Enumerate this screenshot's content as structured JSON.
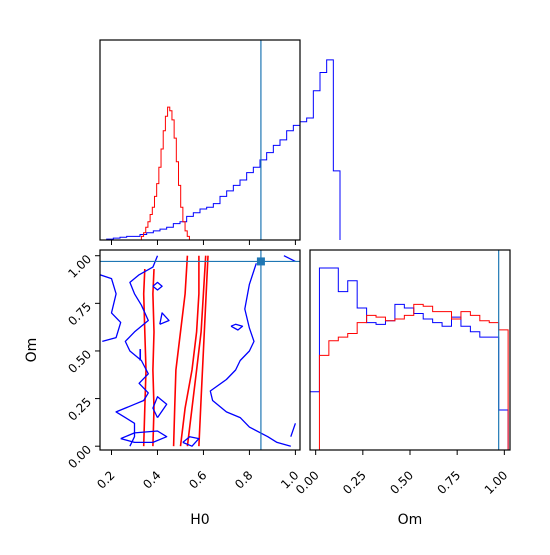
{
  "chart_data": {
    "type": "corner",
    "parameters": [
      "H0",
      "Om"
    ],
    "truths": {
      "H0": 0.85,
      "Om": 0.97
    },
    "colors": {
      "blue": "#0000ff",
      "red": "#ff0000",
      "truth": "#1f77b4"
    },
    "panels": [
      {
        "id": "hist-H0",
        "type": "histogram",
        "xlabel": "",
        "ylabel": "",
        "xlim": [
          0.15,
          1.02
        ],
        "series": [
          {
            "color": "blue",
            "bin_start": 0.15,
            "bin_width": 0.029,
            "values": [
              0,
              0.005,
              0.01,
              0.015,
              0.02,
              0.02,
              0.03,
              0.04,
              0.05,
              0.06,
              0.07,
              0.09,
              0.1,
              0.13,
              0.15,
              0.17,
              0.18,
              0.2,
              0.24,
              0.27,
              0.3,
              0.33,
              0.37,
              0.4,
              0.44,
              0.48,
              0.52,
              0.55,
              0.6,
              0.63,
              0.65,
              0.67,
              0.82,
              0.92,
              0.99,
              0.38
            ]
          },
          {
            "color": "red",
            "bin_start": 0.33,
            "bin_width": 0.0095,
            "values": [
              0.02,
              0.04,
              0.07,
              0.1,
              0.14,
              0.18,
              0.24,
              0.31,
              0.4,
              0.5,
              0.6,
              0.68,
              0.73,
              0.71,
              0.66,
              0.56,
              0.43,
              0.3,
              0.18,
              0.1,
              0.05,
              0.02
            ]
          }
        ]
      },
      {
        "id": "contour-H0-Om",
        "type": "contour",
        "xlabel": "H0",
        "ylabel": "Om",
        "xlim": [
          0.15,
          1.02
        ],
        "ylim": [
          -0.02,
          1.03
        ],
        "xticks": [
          "0.2",
          "0.4",
          "0.6",
          "0.8",
          "1.0"
        ],
        "yticks": [
          "0.00",
          "0.25",
          "0.50",
          "0.75",
          "1.00"
        ],
        "series": [
          {
            "color": "red",
            "lines": [
              [
                [
                  0.34,
                  0.0
                ],
                [
                  0.345,
                  0.2
                ],
                [
                  0.35,
                  0.4
                ],
                [
                  0.345,
                  0.6
                ],
                [
                  0.34,
                  0.8
                ],
                [
                  0.345,
                  0.93
                ]
              ],
              [
                [
                  0.385,
                  0.93
                ],
                [
                  0.38,
                  0.8
                ],
                [
                  0.385,
                  0.6
                ],
                [
                  0.38,
                  0.4
                ],
                [
                  0.385,
                  0.2
                ],
                [
                  0.38,
                  0.0
                ]
              ],
              [
                [
                  0.47,
                  0.0
                ],
                [
                  0.475,
                  0.2
                ],
                [
                  0.48,
                  0.4
                ],
                [
                  0.5,
                  0.6
                ],
                [
                  0.52,
                  0.8
                ],
                [
                  0.53,
                  1.0
                ]
              ],
              [
                [
                  0.5,
                  0.0
                ],
                [
                  0.52,
                  0.2
                ],
                [
                  0.55,
                  0.4
                ],
                [
                  0.57,
                  0.6
                ],
                [
                  0.58,
                  0.8
                ],
                [
                  0.58,
                  1.0
                ]
              ],
              [
                [
                  0.53,
                  0.0
                ],
                [
                  0.55,
                  0.2
                ],
                [
                  0.57,
                  0.4
                ],
                [
                  0.59,
                  0.6
                ],
                [
                  0.6,
                  0.8
                ],
                [
                  0.61,
                  1.0
                ]
              ],
              [
                [
                  0.58,
                  0.0
                ],
                [
                  0.59,
                  0.25
                ],
                [
                  0.6,
                  0.5
                ],
                [
                  0.61,
                  0.75
                ],
                [
                  0.62,
                  1.0
                ]
              ]
            ]
          },
          {
            "color": "blue",
            "lines": [
              [
                [
                  0.28,
                  0.0
                ],
                [
                  0.3,
                  0.05
                ],
                [
                  0.3,
                  0.12
                ],
                [
                  0.26,
                  0.15
                ],
                [
                  0.22,
                  0.18
                ],
                [
                  0.3,
                  0.22
                ],
                [
                  0.34,
                  0.24
                ],
                [
                  0.36,
                  0.28
                ],
                [
                  0.32,
                  0.33
                ],
                [
                  0.36,
                  0.38
                ],
                [
                  0.33,
                  0.45
                ],
                [
                  0.28,
                  0.5
                ],
                [
                  0.26,
                  0.55
                ],
                [
                  0.3,
                  0.6
                ],
                [
                  0.36,
                  0.66
                ],
                [
                  0.33,
                  0.74
                ],
                [
                  0.3,
                  0.8
                ],
                [
                  0.28,
                  0.86
                ],
                [
                  0.32,
                  0.9
                ],
                [
                  0.38,
                  0.94
                ],
                [
                  0.4,
                  1.0
                ]
              ],
              [
                [
                  0.15,
                  0.9
                ],
                [
                  0.2,
                  0.88
                ],
                [
                  0.22,
                  0.8
                ],
                [
                  0.2,
                  0.7
                ],
                [
                  0.24,
                  0.65
                ],
                [
                  0.22,
                  0.57
                ],
                [
                  0.16,
                  0.55
                ]
              ],
              [
                [
                  0.83,
                  0.96
                ],
                [
                  0.8,
                  0.85
                ],
                [
                  0.78,
                  0.72
                ],
                [
                  0.8,
                  0.62
                ],
                [
                  0.82,
                  0.55
                ],
                [
                  0.8,
                  0.5
                ],
                [
                  0.76,
                  0.45
                ],
                [
                  0.74,
                  0.4
                ],
                [
                  0.7,
                  0.35
                ],
                [
                  0.63,
                  0.29
                ],
                [
                  0.64,
                  0.24
                ],
                [
                  0.7,
                  0.18
                ],
                [
                  0.76,
                  0.15
                ],
                [
                  0.8,
                  0.1
                ],
                [
                  0.88,
                  0.05
                ],
                [
                  0.92,
                  0.02
                ],
                [
                  0.98,
                  0.0
                ]
              ],
              [
                [
                  0.98,
                  0.05
                ],
                [
                  1.0,
                  0.12
                ]
              ],
              [
                [
                  0.95,
                  1.0
                ],
                [
                  1.0,
                  0.97
                ]
              ],
              [
                [
                  0.4,
                  0.15
                ],
                [
                  0.44,
                  0.22
                ],
                [
                  0.4,
                  0.26
                ],
                [
                  0.38,
                  0.2
                ],
                [
                  0.4,
                  0.15
                ]
              ],
              [
                [
                  0.41,
                  0.64
                ],
                [
                  0.45,
                  0.66
                ],
                [
                  0.42,
                  0.7
                ],
                [
                  0.41,
                  0.64
                ]
              ],
              [
                [
                  0.24,
                  0.04
                ],
                [
                  0.3,
                  0.02
                ],
                [
                  0.38,
                  0.02
                ],
                [
                  0.44,
                  0.05
                ],
                [
                  0.4,
                  0.08
                ],
                [
                  0.3,
                  0.07
                ],
                [
                  0.24,
                  0.04
                ]
              ],
              [
                [
                  0.51,
                  0.02
                ],
                [
                  0.54,
                  0.05
                ],
                [
                  0.58,
                  0.04
                ],
                [
                  0.55,
                  0.0
                ],
                [
                  0.51,
                  0.02
                ]
              ],
              [
                [
                  0.38,
                  0.84
                ],
                [
                  0.4,
                  0.82
                ],
                [
                  0.42,
                  0.84
                ],
                [
                  0.4,
                  0.86
                ],
                [
                  0.38,
                  0.84
                ]
              ],
              [
                [
                  0.72,
                  0.63
                ],
                [
                  0.75,
                  0.61
                ],
                [
                  0.77,
                  0.63
                ],
                [
                  0.74,
                  0.64
                ],
                [
                  0.72,
                  0.63
                ]
              ]
            ]
          }
        ],
        "ticks_marks": [
          {
            "color": "blue",
            "x": 0.325,
            "y": 0.48,
            "len": 0.06
          }
        ]
      },
      {
        "id": "hist-Om",
        "type": "histogram",
        "xlabel": "Om",
        "ylabel": "",
        "xlim": [
          -0.03,
          1.03
        ],
        "xticks": [
          "0.00",
          "0.25",
          "0.50",
          "0.75",
          "1.00"
        ],
        "series": [
          {
            "color": "blue",
            "bin_start": -0.03,
            "bin_width": 0.05,
            "values": [
              0.32,
              1.0,
              1.0,
              0.87,
              0.93,
              0.78,
              0.7,
              0.69,
              0.71,
              0.8,
              0.78,
              0.75,
              0.72,
              0.7,
              0.68,
              0.73,
              0.68,
              0.65,
              0.62,
              0.62,
              0.22
            ]
          },
          {
            "color": "red",
            "bin_start": -0.03,
            "bin_width": 0.05,
            "values": [
              0.0,
              0.52,
              0.6,
              0.62,
              0.64,
              0.7,
              0.74,
              0.73,
              0.71,
              0.72,
              0.74,
              0.8,
              0.79,
              0.76,
              0.76,
              0.72,
              0.76,
              0.74,
              0.71,
              0.7,
              0.66
            ]
          }
        ]
      }
    ]
  }
}
